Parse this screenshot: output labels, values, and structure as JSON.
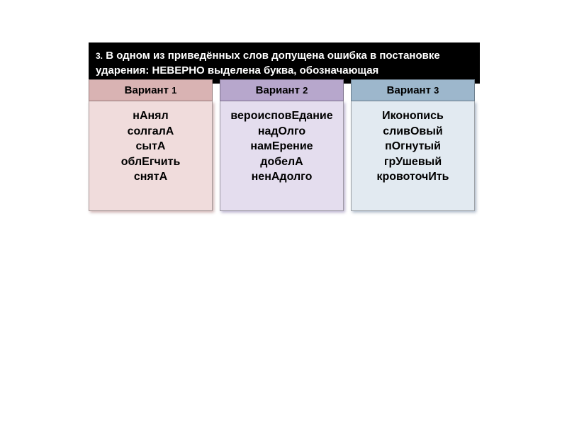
{
  "question": {
    "number": "3.",
    "line1": "В одном из приведённых слов допущена ошибка в постановке",
    "line2": "ударения: НЕВЕРНО выделена буква, обозначающая"
  },
  "variants": [
    {
      "id": "v1",
      "label": "Вариант",
      "num": "1",
      "header_bg": "#d9b3b3",
      "body_bg": "#f0dcdc",
      "words": [
        "нАнял",
        "солгалА",
        "сытА",
        "облЕгчить",
        "снятА"
      ]
    },
    {
      "id": "v2",
      "label": "Вариант",
      "num": "2",
      "header_bg": "#b7a7cc",
      "body_bg": "#e4ddee",
      "words": [
        "вероисповЕдание",
        "надОлго",
        "намЕрение",
        "добелА",
        "ненАдолго"
      ]
    },
    {
      "id": "v3",
      "label": "Вариант",
      "num": "3",
      "header_bg": "#9db7cc",
      "body_bg": "#e2eaf1",
      "words": [
        "Иконопись",
        "сливОвый",
        "пОгнутый",
        "грУшевый",
        "кровоточИть"
      ]
    }
  ]
}
